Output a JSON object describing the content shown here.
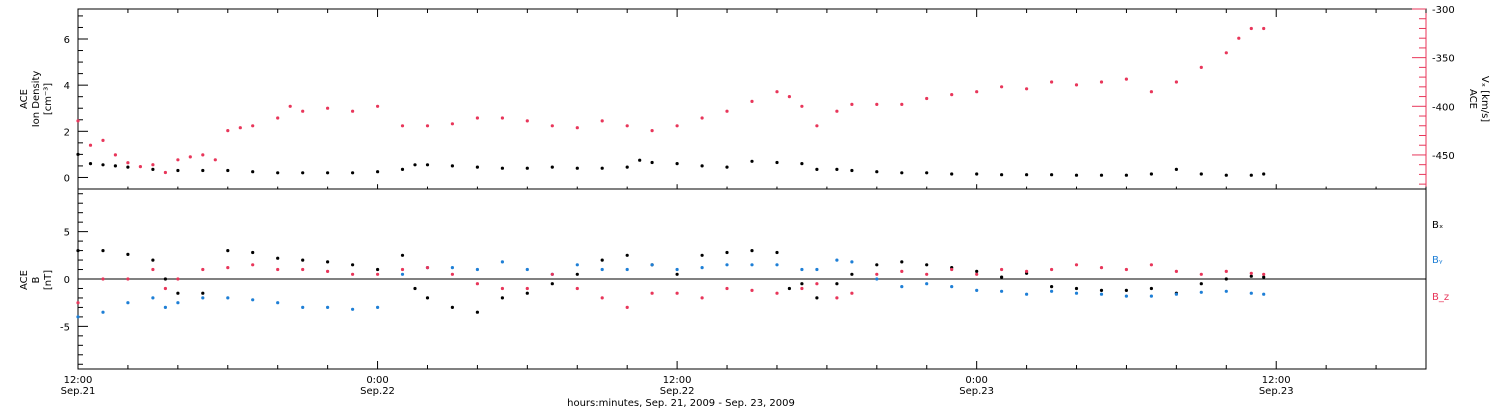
{
  "colors": {
    "axis": "#000000",
    "density": "#000000",
    "speed": "#e8365a",
    "bx": "#000000",
    "by": "#1e7fd6",
    "bz": "#e8365a"
  },
  "xaxis": {
    "title": "hours:minutes, Sep. 21, 2009 - Sep. 23, 2009",
    "range_hours": [
      0,
      54
    ],
    "major_ticks": [
      {
        "hour": 0,
        "time": "12:00",
        "date": "Sep.21"
      },
      {
        "hour": 12,
        "time": "0:00",
        "date": "Sep.22"
      },
      {
        "hour": 24,
        "time": "12:00",
        "date": "Sep.22"
      },
      {
        "hour": 36,
        "time": "0:00",
        "date": "Sep.23"
      },
      {
        "hour": 48,
        "time": "12:00",
        "date": "Sep.23"
      }
    ],
    "minor_tick_step_hours": 2
  },
  "panels": {
    "top": {
      "ylabel": {
        "line1": "ACE",
        "line2": "Ion Density",
        "line3": "[cm⁻³]"
      },
      "yrange": [
        -0.5,
        7.3
      ],
      "yticks": [
        "0",
        "2",
        "4",
        "6"
      ],
      "ytick_values": [
        0,
        2,
        4,
        6
      ],
      "right_axis": {
        "label_line1": "ACE",
        "label_line2": "Vₓ [km/s]",
        "range": [
          -485,
          -300
        ],
        "ticks": [
          "-300",
          "-350",
          "-400",
          "-450"
        ],
        "tick_values": [
          -300,
          -350,
          -400,
          -450
        ]
      }
    },
    "bottom": {
      "ylabel": {
        "line1": "ACE",
        "line2": "B",
        "line3": "[nT]"
      },
      "yrange": [
        -9.5,
        9.5
      ],
      "yticks": [
        "5",
        "0",
        "-5"
      ],
      "ytick_values": [
        5,
        0,
        -5
      ],
      "legend": [
        "Bₓ",
        "Bᵧ",
        "B_z"
      ]
    }
  },
  "chart_data": [
    {
      "type": "scatter",
      "title": "",
      "xlabel": "hours:minutes, Sep. 21, 2009 - Sep. 23, 2009",
      "ylabel": "ACE Ion Density [cm⁻³]",
      "x_unit": "hours since Sep. 21, 2009 12:00",
      "ylim": [
        -0.5,
        7.3
      ],
      "y2lim": [
        -485,
        -300
      ],
      "series": [
        {
          "name": "Ion Density",
          "axis": "left",
          "x": [
            0,
            0.5,
            1,
            1.5,
            2,
            3,
            4,
            5,
            6,
            7,
            8,
            9,
            10,
            11,
            12,
            13,
            13.5,
            14,
            15,
            16,
            17,
            18,
            19,
            20,
            21,
            22,
            22.5,
            23,
            24,
            25,
            26,
            27,
            28,
            29,
            29.6,
            30.4,
            31,
            32,
            33,
            34,
            35,
            36,
            37,
            38,
            39,
            40,
            41,
            42,
            43,
            44,
            45,
            46,
            47,
            47.5
          ],
          "y": [
            1.0,
            0.6,
            0.55,
            0.5,
            0.45,
            0.35,
            0.3,
            0.3,
            0.3,
            0.25,
            0.2,
            0.2,
            0.2,
            0.2,
            0.25,
            0.35,
            0.55,
            0.55,
            0.5,
            0.45,
            0.4,
            0.4,
            0.45,
            0.4,
            0.4,
            0.45,
            0.75,
            0.65,
            0.6,
            0.5,
            0.45,
            0.7,
            0.65,
            0.6,
            0.35,
            0.35,
            0.3,
            0.25,
            0.2,
            0.2,
            0.15,
            0.15,
            0.12,
            0.12,
            0.12,
            0.1,
            0.1,
            0.1,
            0.15,
            0.35,
            0.15,
            0.1,
            0.1,
            0.15
          ]
        },
        {
          "name": "Vx",
          "axis": "right",
          "x": [
            0,
            0.5,
            1,
            1.5,
            2,
            2.5,
            3,
            3.5,
            4,
            4.5,
            5,
            5.5,
            6,
            6.5,
            7,
            8,
            8.5,
            9,
            10,
            11,
            12,
            13,
            14,
            15,
            16,
            17,
            18,
            19,
            20,
            21,
            22,
            23,
            24,
            25,
            26,
            27,
            28,
            28.5,
            29,
            29.6,
            30.4,
            31,
            32,
            33,
            34,
            35,
            36,
            37,
            38,
            39,
            40,
            41,
            42,
            43,
            44,
            45,
            46,
            46.5,
            47,
            47.5
          ],
          "y": [
            -415,
            -440,
            -435,
            -450,
            -458,
            -462,
            -460,
            -468,
            -455,
            -452,
            -450,
            -455,
            -425,
            -422,
            -420,
            -412,
            -400,
            -405,
            -402,
            -405,
            -400,
            -420,
            -420,
            -418,
            -412,
            -412,
            -415,
            -420,
            -422,
            -415,
            -420,
            -425,
            -420,
            -412,
            -405,
            -395,
            -385,
            -390,
            -400,
            -420,
            -405,
            -398,
            -398,
            -398,
            -392,
            -388,
            -385,
            -380,
            -382,
            -375,
            -378,
            -375,
            -372,
            -385,
            -375,
            -360,
            -345,
            -330,
            -320,
            -320
          ]
        }
      ]
    },
    {
      "type": "scatter",
      "title": "",
      "xlabel": "hours:minutes, Sep. 21, 2009 - Sep. 23, 2009",
      "ylabel": "ACE B [nT]",
      "x_unit": "hours since Sep. 21, 2009 12:00",
      "ylim": [
        -9.5,
        9.5
      ],
      "series": [
        {
          "name": "Bₓ",
          "x": [
            0,
            1,
            2,
            3,
            3.5,
            4,
            5,
            6,
            7,
            8,
            9,
            10,
            11,
            12,
            13,
            13.5,
            14,
            15,
            16,
            17,
            18,
            19,
            20,
            21,
            22,
            23,
            24,
            25,
            26,
            27,
            28,
            28.5,
            29,
            29.6,
            30.4,
            31,
            32,
            33,
            34,
            35,
            36,
            37,
            38,
            39,
            40,
            41,
            42,
            43,
            44,
            45,
            46,
            47,
            47.5
          ],
          "y": [
            3.0,
            3.0,
            2.6,
            2.0,
            0.0,
            -1.5,
            -1.5,
            3.0,
            2.8,
            2.2,
            2.0,
            1.8,
            1.5,
            1.0,
            2.5,
            -1.0,
            -2.0,
            -3.0,
            -3.5,
            -2.0,
            -1.5,
            -0.5,
            0.5,
            2.0,
            2.5,
            1.5,
            0.5,
            2.5,
            2.8,
            3.0,
            2.8,
            -1.0,
            -0.5,
            -2.0,
            -0.5,
            0.5,
            1.5,
            1.8,
            1.5,
            1.2,
            0.8,
            0.2,
            0.6,
            -0.8,
            -1.0,
            -1.2,
            -1.2,
            -1.0,
            -1.5,
            -0.5,
            0.0,
            0.3,
            0.2
          ]
        },
        {
          "name": "Bᵧ",
          "x": [
            0,
            1,
            2,
            3,
            3.5,
            4,
            5,
            6,
            7,
            8,
            9,
            10,
            11,
            12,
            13,
            14,
            15,
            16,
            17,
            18,
            19,
            20,
            21,
            22,
            23,
            24,
            25,
            26,
            27,
            28,
            29,
            29.6,
            30.4,
            31,
            32,
            33,
            34,
            35,
            36,
            37,
            38,
            39,
            40,
            41,
            42,
            43,
            44,
            45,
            46,
            47,
            47.5
          ],
          "y": [
            -4.0,
            -3.5,
            -2.5,
            -2.0,
            -3.0,
            -2.5,
            -2.0,
            -2.0,
            -2.2,
            -2.5,
            -3.0,
            -3.0,
            -3.2,
            -3.0,
            0.5,
            1.2,
            1.2,
            1.0,
            1.8,
            1.0,
            0.5,
            1.5,
            1.0,
            1.0,
            1.5,
            1.0,
            1.2,
            1.5,
            1.5,
            1.5,
            1.0,
            1.0,
            2.0,
            1.8,
            0.0,
            -0.8,
            -0.5,
            -0.8,
            -1.2,
            -1.3,
            -1.6,
            -1.3,
            -1.5,
            -1.6,
            -1.8,
            -1.8,
            -1.6,
            -1.4,
            -1.3,
            -1.5,
            -1.6
          ]
        },
        {
          "name": "B_z",
          "x": [
            0,
            1,
            2,
            3,
            3.5,
            4,
            5,
            6,
            7,
            8,
            9,
            10,
            11,
            12,
            13,
            14,
            15,
            16,
            17,
            18,
            19,
            20,
            21,
            22,
            23,
            24,
            25,
            26,
            27,
            28,
            29,
            29.6,
            30.4,
            31,
            32,
            33,
            34,
            35,
            36,
            37,
            38,
            39,
            40,
            41,
            42,
            43,
            44,
            45,
            46,
            47,
            47.5
          ],
          "y": [
            -2.5,
            0.0,
            0.0,
            1.0,
            -1.0,
            0.0,
            1.0,
            1.2,
            1.5,
            1.0,
            1.0,
            0.8,
            0.5,
            0.5,
            1.0,
            1.2,
            0.5,
            -0.5,
            -1.0,
            -1.0,
            0.5,
            -1.0,
            -2.0,
            -3.0,
            -1.5,
            -1.5,
            -2.0,
            -1.0,
            -1.2,
            -1.5,
            -1.0,
            -0.5,
            -2.0,
            -1.5,
            0.5,
            0.8,
            0.5,
            1.0,
            0.5,
            1.0,
            0.8,
            1.0,
            1.5,
            1.2,
            1.0,
            1.5,
            0.8,
            0.5,
            0.8,
            0.6,
            0.5
          ]
        }
      ]
    }
  ]
}
